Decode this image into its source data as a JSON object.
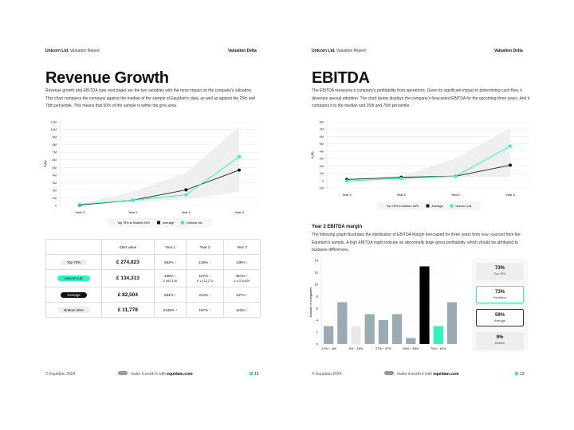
{
  "pages": [
    {
      "header": {
        "company": "Unicorn Ltd.",
        "report": "Valuation Report",
        "section": "Valuation Delta"
      },
      "title": "Revenue Growth",
      "paragraph": "Revenue growth and EBITDA (see next page) are the two variables with the most impact on the company's valuation. This chart compares the company against the median of the sample of Equidam's data, as well as against the 25th and 75th percentile. This means that 50% of the sample is within the grey area.",
      "footer": {
        "copyright": "© Equidam 2024",
        "tagline": "make it worth it with",
        "site": "equidam.com",
        "page": "12"
      }
    },
    {
      "header": {
        "company": "Unicorn Ltd.",
        "report": "Valuation Report",
        "section": "Valuation Delta"
      },
      "title": "EBITDA",
      "paragraph": "The EBITDA measures a company's profitability from operations. Given its significant impact in determining cash flow, it deserves special attention. The chart below displays the company's forecasted EBITDA for the upcoming three years. And it compares it to the median and 25th and 75th percentile.",
      "subtitle": "Year 3 EBITDA margin",
      "paragraph2": "The following graph illustrates the distribution of EBITDA Margin forecasted for three years from now, sourced from the Equidam's sample. A high EBITDA might indicate an abnormally large gross profitability, which should be attributed to business differences.",
      "footer": {
        "copyright": "© Equidam 2024",
        "tagline": "make it worth it with",
        "site": "equidam.com",
        "page": "13"
      }
    }
  ],
  "colors": {
    "accent": "#2ef5c0",
    "average": "#111111",
    "band": "#efefef",
    "bar": "#9aabb3"
  },
  "chart_data": [
    {
      "type": "line",
      "ylabel": "£(M)",
      "categories": [
        "Year 0",
        "Year 1",
        "Year 2",
        "Year 3"
      ],
      "yticks": [
        "0",
        "1M",
        "2M",
        "3M",
        "4M",
        "5M",
        "6M",
        "7M",
        "8M",
        "9M",
        "10M",
        "11M"
      ],
      "ylim": [
        0,
        11
      ],
      "band": {
        "name": "Top 75% to Bottom 25%",
        "low": [
          0,
          0.5,
          0.8,
          1.8
        ],
        "high": [
          0.2,
          1.8,
          4.3,
          10.4
        ]
      },
      "series": [
        {
          "name": "Average",
          "values": [
            0.05,
            0.7,
            2.05,
            4.65
          ]
        },
        {
          "name": "Unicorn Ltd.",
          "values": [
            0.15,
            0.7,
            1.4,
            6.4
          ]
        }
      ],
      "grid": true,
      "legend": "bottom"
    },
    {
      "type": "line",
      "ylabel": "£(M)",
      "categories": [
        "Year 0",
        "Year 1",
        "Year 2",
        "Year 3"
      ],
      "yticks": [
        "-1M",
        "0",
        "1M",
        "2M",
        "3M",
        "4M",
        "5M",
        "6M",
        "7M",
        "8M"
      ],
      "ylim": [
        -1,
        8
      ],
      "band": {
        "name": "Top 75% to Bottom 25%",
        "low": [
          0,
          0.2,
          0.5,
          0.5
        ],
        "high": [
          0.2,
          0.6,
          3,
          7.2
        ]
      },
      "series": [
        {
          "name": "Average",
          "values": [
            0.15,
            0.45,
            0.6,
            2.1
          ]
        },
        {
          "name": "Unicorn Ltd.",
          "values": [
            -0.05,
            0.3,
            0.6,
            4.7
          ]
        }
      ],
      "grid": true,
      "legend": "bottom"
    },
    {
      "type": "bar",
      "ylabel": "Number of companies",
      "ylim": [
        0,
        14
      ],
      "yticks": [
        "0",
        "2",
        "4",
        "6",
        "8",
        "10",
        "12",
        "14"
      ],
      "categories": [
        "-17% ~ -6%",
        "",
        "5% ~ 16%",
        "",
        "27% ~ 37%",
        "",
        "48% ~ 59%",
        "",
        "70% ~ 81%",
        ""
      ],
      "values": [
        3,
        7,
        3,
        5,
        4,
        5,
        1,
        13,
        3,
        7
      ],
      "highlight": [
        "bar",
        "bar",
        "bottom",
        "bar",
        "bar",
        "bar",
        "bar",
        "average",
        "prediction",
        "bar"
      ]
    }
  ],
  "table": {
    "headers": [
      "",
      "Start value",
      "Year 1",
      "Year 2",
      "Year 3"
    ],
    "rows": [
      {
        "label": "Top 75%",
        "start": "£ 274,823",
        "y": [
          "554% ↑",
          "136% ↑",
          "148% ↑"
        ],
        "sub": [
          "",
          "",
          ""
        ]
      },
      {
        "label": "Unicorn Ltd.",
        "start": "£ 134,313",
        "y": [
          "408% ↑",
          "107% ↑",
          "351% ↑"
        ],
        "sub": [
          "£ 682,140",
          "£ 1,413,773",
          "£ 6,378,829"
        ]
      },
      {
        "label": "Average",
        "start": "£ 82,504",
        "y": [
          "654% ↑",
          "213% ↑",
          "137% ↑"
        ],
        "sub": [
          "",
          "",
          ""
        ]
      },
      {
        "label": "Bottom 25%",
        "start": "£ 11,778",
        "y": [
          "2438% ↑",
          "167% ↑",
          "123% ↑"
        ],
        "sub": [
          "",
          "",
          ""
        ]
      }
    ]
  },
  "cards": [
    {
      "value": "73%",
      "label": "Top 75%"
    },
    {
      "value": "73%",
      "label": "Prediction"
    },
    {
      "value": "59%",
      "label": "Average"
    },
    {
      "value": "9%",
      "label": "Bottom"
    }
  ]
}
